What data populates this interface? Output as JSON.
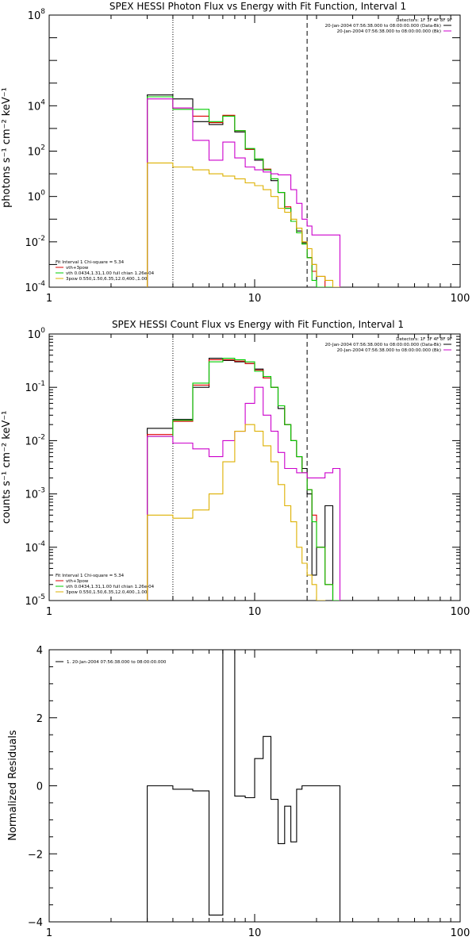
{
  "chart_data": [
    {
      "type": "line",
      "title": "SPEX HESSI Photon Flux vs Energy with Fit Function, Interval 1",
      "xlabel": "",
      "ylabel": "photons s⁻¹ cm⁻² keV⁻¹",
      "xscale": "log",
      "yscale": "log",
      "xlim": [
        1,
        100
      ],
      "ylim": [
        0.0001,
        100000000
      ],
      "x_ticks": [
        {
          "value": 1,
          "label": "1"
        },
        {
          "value": 10,
          "label": "10"
        },
        {
          "value": 100,
          "label": "100"
        }
      ],
      "y_ticks": [
        {
          "value": 0.0001,
          "base": "10",
          "exp": "-4"
        },
        {
          "value": 0.01,
          "base": "10",
          "exp": "-2"
        },
        {
          "value": 1,
          "base": "10",
          "exp": "0"
        },
        {
          "value": 100,
          "base": "10",
          "exp": "2"
        },
        {
          "value": 10000,
          "base": "10",
          "exp": "4"
        },
        {
          "value": 100000000,
          "base": "10",
          "exp": "8"
        }
      ],
      "markers": {
        "dotted": 4.0,
        "dashed": 18.0
      },
      "legend_top": {
        "detectors": "Detectors: 1F 3F 4F 8F 9F",
        "entries": [
          {
            "text": "20-Jan-2004 07:56:38.000 to 08:00:00.000 (Data-Bk)",
            "color": "#000000"
          },
          {
            "text": "20-Jan-2004 07:56:38.000 to 08:00:00.000 (Bk)",
            "color": "#cc00cc"
          }
        ]
      },
      "legend_fit": {
        "header": "Fit Interval 1   Chi-square = 5.34",
        "entries": [
          {
            "text": "vth+3pow",
            "color": "#dd0000"
          },
          {
            "text": "vth 0.0434,1.31,1.00  full chian 1.26e-04",
            "color": "#00cc00"
          },
          {
            "text": "3pow 0.550,1.50,6.35,12.0,400.,1.00",
            "color": "#ddb000"
          }
        ]
      },
      "edges": [
        3,
        4,
        5,
        6,
        7,
        8,
        9,
        10,
        11,
        12,
        13,
        14,
        15,
        16,
        17,
        18,
        19,
        20,
        22,
        24,
        26,
        28
      ],
      "series": [
        {
          "color": "#000000",
          "values": [
            30000,
            20000,
            2000,
            1500,
            3500,
            700,
            120,
            40,
            15,
            5,
            1.5,
            0.3,
            0.08,
            0.03,
            0.009,
            0.002,
            0.001,
            0.0001,
            0.0001,
            null,
            null
          ]
        },
        {
          "color": "#dd0000",
          "values": [
            25000,
            8000,
            3500,
            1800,
            3800,
            800,
            120,
            45,
            16,
            6,
            1.5,
            0.35,
            0.08,
            0.025,
            0.008,
            0.002,
            0.0005,
            0.0003,
            null,
            null,
            null
          ]
        },
        {
          "color": "#00cc00",
          "values": [
            25000,
            7000,
            7000,
            2000,
            3500,
            800,
            130,
            45,
            15,
            6,
            1.5,
            0.3,
            0.08,
            0.025,
            0.008,
            0.002,
            0.0002,
            0.0001,
            0.0001,
            0.0001,
            null
          ]
        },
        {
          "color": "#cc00cc",
          "values": [
            20000,
            8000,
            300,
            40,
            250,
            50,
            20,
            15,
            12,
            10,
            9,
            9,
            2,
            0.5,
            0.1,
            0.05,
            0.02,
            0.02,
            0.02,
            0.02,
            null
          ]
        },
        {
          "color": "#ddb000",
          "values": [
            30,
            20,
            15,
            10,
            8,
            6,
            4,
            3,
            2,
            1,
            0.3,
            0.2,
            0.1,
            0.04,
            0.01,
            0.005,
            0.001,
            0.0003,
            0.0002,
            0.0001,
            null
          ]
        }
      ]
    },
    {
      "type": "line",
      "title": "SPEX HESSI Count Flux vs Energy with Fit Function, Interval 1",
      "xlabel": "",
      "ylabel": "counts s⁻¹ cm⁻² keV⁻¹",
      "xscale": "log",
      "yscale": "log",
      "xlim": [
        1,
        100
      ],
      "ylim": [
        1e-05,
        1
      ],
      "x_ticks": [
        {
          "value": 1,
          "label": "1"
        },
        {
          "value": 10,
          "label": "10"
        },
        {
          "value": 100,
          "label": "100"
        }
      ],
      "y_ticks": [
        {
          "value": 1e-05,
          "base": "10",
          "exp": "-5"
        },
        {
          "value": 0.0001,
          "base": "10",
          "exp": "-4"
        },
        {
          "value": 0.001,
          "base": "10",
          "exp": "-3"
        },
        {
          "value": 0.01,
          "base": "10",
          "exp": "-2"
        },
        {
          "value": 0.1,
          "base": "10",
          "exp": "-1"
        },
        {
          "value": 1,
          "base": "10",
          "exp": "0"
        }
      ],
      "markers": {
        "dotted": 4.0,
        "dashed": 18.0
      },
      "legend_top": {
        "detectors": "Detectors: 1F 3F 4F 8F 9F",
        "entries": [
          {
            "text": "20-Jan-2004 07:56:38.000 to 08:00:00.000 (Data-Bk)",
            "color": "#000000"
          },
          {
            "text": "20-Jan-2004 07:56:38.000 to 08:00:00.000 (Bk)",
            "color": "#cc00cc"
          }
        ]
      },
      "legend_fit": {
        "header": "Fit Interval 1   Chi-square = 5.34",
        "entries": [
          {
            "text": "vth+3pow",
            "color": "#dd0000"
          },
          {
            "text": "vth 0.0434,1.31,1.00  full chian 1.26e-04",
            "color": "#00cc00"
          },
          {
            "text": "3pow 0.550,1.50,6.35,12.0,400.,1.00",
            "color": "#ddb000"
          }
        ]
      },
      "edges": [
        3,
        4,
        5,
        6,
        7,
        8,
        9,
        10,
        11,
        12,
        13,
        14,
        15,
        16,
        17,
        18,
        19,
        20,
        22,
        24,
        26,
        28
      ],
      "series": [
        {
          "color": "#000000",
          "values": [
            0.017,
            0.025,
            0.1,
            0.35,
            0.32,
            0.3,
            0.28,
            0.22,
            0.15,
            0.1,
            0.04,
            0.02,
            0.01,
            0.005,
            0.003,
            0.001,
            3e-05,
            0.0001,
            0.0006,
            null,
            null
          ]
        },
        {
          "color": "#dd0000",
          "values": [
            0.013,
            0.023,
            0.11,
            0.33,
            0.33,
            0.31,
            0.28,
            0.21,
            0.15,
            0.1,
            0.045,
            0.02,
            0.01,
            0.005,
            0.0025,
            0.0012,
            0.0004,
            0.0001,
            2e-05,
            1e-05,
            null
          ]
        },
        {
          "color": "#00cc00",
          "values": [
            0.012,
            0.024,
            0.12,
            0.3,
            0.35,
            0.33,
            0.3,
            0.2,
            0.16,
            0.1,
            0.045,
            0.02,
            0.01,
            0.005,
            0.0025,
            0.0012,
            0.0003,
            0.0001,
            2e-05,
            1e-05,
            null
          ]
        },
        {
          "color": "#cc00cc",
          "values": [
            0.012,
            0.009,
            0.007,
            0.005,
            0.01,
            0.015,
            0.05,
            0.1,
            0.03,
            0.015,
            0.006,
            0.003,
            0.003,
            0.0025,
            0.0025,
            0.002,
            0.002,
            0.002,
            0.0025,
            0.003,
            null
          ]
        },
        {
          "color": "#ddb000",
          "values": [
            0.0004,
            0.00035,
            0.0005,
            0.001,
            0.004,
            0.015,
            0.02,
            0.015,
            0.008,
            0.004,
            0.0015,
            0.0006,
            0.0003,
            0.0001,
            5e-05,
            3e-05,
            2e-05,
            1e-05,
            null,
            null,
            null
          ]
        }
      ]
    },
    {
      "type": "line",
      "title": "",
      "xlabel": "",
      "ylabel": "Normalized Residuals",
      "xscale": "log",
      "yscale": "linear",
      "xlim": [
        1,
        100
      ],
      "ylim": [
        -4,
        4
      ],
      "x_ticks": [
        {
          "value": 1,
          "label": "1"
        },
        {
          "value": 10,
          "label": "10"
        },
        {
          "value": 100,
          "label": "100"
        }
      ],
      "y_ticks": [
        {
          "value": -4,
          "label": "−4"
        },
        {
          "value": -2,
          "label": "−2"
        },
        {
          "value": 0,
          "label": "0"
        },
        {
          "value": 2,
          "label": "2"
        },
        {
          "value": 4,
          "label": "4"
        }
      ],
      "legend": [
        {
          "text": "1. 20-Jan-2004 07:56:38.000 to 08:00:00.000",
          "color": "#000000"
        }
      ],
      "edges": [
        3,
        4,
        5,
        6,
        7,
        8,
        9,
        10,
        11,
        12,
        13,
        14,
        15,
        16,
        17,
        18,
        19,
        20,
        22,
        24,
        26,
        28
      ],
      "series": [
        {
          "color": "#000000",
          "values": [
            0,
            -0.1,
            -0.15,
            -3.8,
            4.0,
            -0.3,
            -0.35,
            0.8,
            1.45,
            -0.4,
            -1.7,
            -0.6,
            -1.65,
            -0.1,
            0,
            0,
            0,
            0,
            0,
            0,
            null
          ]
        }
      ]
    }
  ]
}
